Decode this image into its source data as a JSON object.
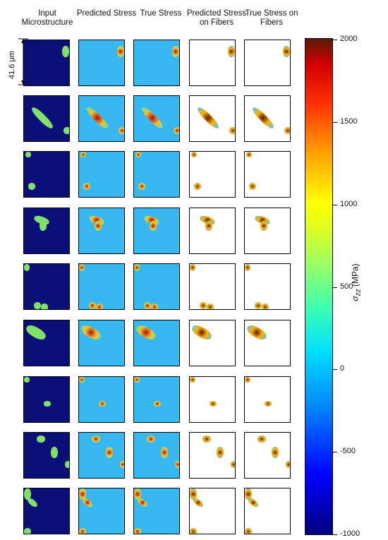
{
  "headers": {
    "input_microstructure": "Input Microstructure",
    "predicted_stress": "Predicted Stress",
    "true_stress": "True Stress",
    "predicted_fibers": "Predicted Stress on Fibers",
    "true_fibers": "True Stress on Fibers"
  },
  "scale_bar": {
    "label": "41.6 μm"
  },
  "colorbar": {
    "min": -1000,
    "max": 2000,
    "ticks": [
      "2000",
      "1500",
      "1000",
      "500",
      "0",
      "-500",
      "-1000"
    ],
    "tick_values": [
      2000,
      1500,
      1000,
      500,
      0,
      -500,
      -1000
    ],
    "label_symbol": "σ",
    "label_sub": "zz",
    "label_unit": "(MPa)",
    "colormap": "jet"
  },
  "grid": {
    "rows": 9,
    "columns": 5
  }
}
